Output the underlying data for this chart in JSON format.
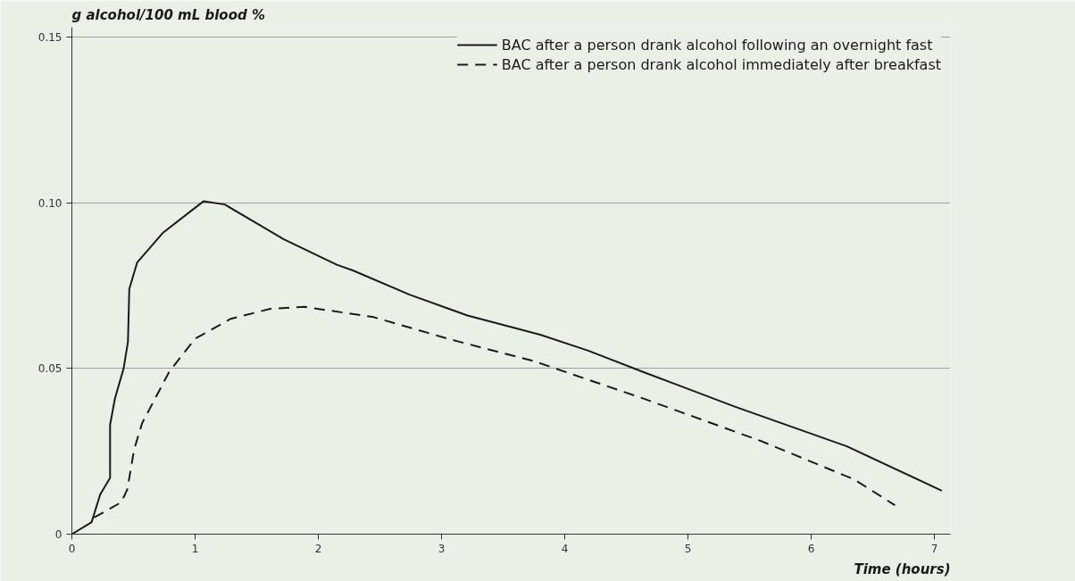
{
  "chart_data": {
    "type": "line",
    "xlabel": "Time (hours)",
    "ylabel": "g alcohol/100 mL blood %",
    "xlim": [
      0,
      7.13
    ],
    "ylim": [
      0,
      0.153
    ],
    "xticks": [
      0,
      1,
      2,
      3,
      4,
      5,
      6,
      7
    ],
    "yticks": [
      0,
      0.05,
      {
        "value": 0.1,
        "label": "0.10"
      },
      0.15
    ],
    "grid": "y",
    "legend": "top right",
    "series": [
      {
        "name": "BAC after a person drank alcohol following an overnight fast",
        "color": "#1a1a1a",
        "line_style": "solid",
        "x": [
          0,
          0.16,
          0.23,
          0.31,
          0.31,
          0.35,
          0.42,
          0.455,
          0.466,
          0.53,
          0.74,
          1.07,
          1.24,
          1.72,
          2.15,
          2.28,
          2.74,
          3.21,
          3.8,
          4.19,
          4.64,
          5.38,
          6.29,
          7.06
        ],
        "values": [
          0,
          0.0036,
          0.012,
          0.017,
          0.033,
          0.041,
          0.05,
          0.058,
          0.074,
          0.082,
          0.091,
          0.1005,
          0.0995,
          0.089,
          0.0813,
          0.0796,
          0.0723,
          0.066,
          0.0602,
          0.0554,
          0.0489,
          0.0385,
          0.0265,
          0.0131
        ]
      },
      {
        "name": "BAC after a person drank alcohol immediately after breakfast",
        "color": "#1a1a1a",
        "line_style": "dashed",
        "x": [
          0.18,
          0.4,
          0.45,
          0.505,
          0.57,
          0.79,
          1.0,
          1.29,
          1.61,
          1.89,
          2.45,
          3.06,
          3.75,
          4.64,
          5.6,
          6.35,
          6.68
        ],
        "values": [
          0.005,
          0.0096,
          0.0135,
          0.0255,
          0.0335,
          0.049,
          0.059,
          0.065,
          0.068,
          0.0686,
          0.0655,
          0.0589,
          0.0522,
          0.0409,
          0.028,
          0.0165,
          0.0087
        ]
      }
    ]
  }
}
